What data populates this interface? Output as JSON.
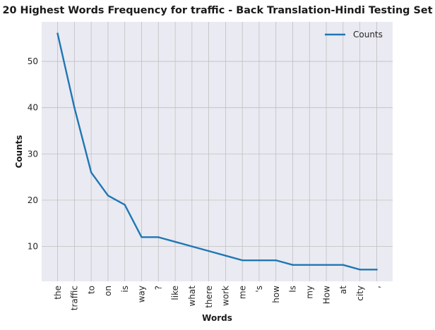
{
  "chart_data": {
    "type": "line",
    "title": "20 Highest Words Frequency for traffic - Back Translation-Hindi Testing Set",
    "xlabel": "Words",
    "ylabel": "Counts",
    "categories": [
      "the",
      "traffic",
      "to",
      "on",
      "is",
      "way",
      "?",
      "like",
      "what",
      "there",
      "work",
      "me",
      "'s",
      "how",
      "Is",
      "my",
      "How",
      "at",
      "city",
      ","
    ],
    "series": [
      {
        "name": "Counts",
        "values": [
          56,
          40,
          26,
          21,
          19,
          12,
          12,
          11,
          10,
          9,
          8,
          7,
          7,
          7,
          6,
          6,
          6,
          6,
          5,
          5
        ]
      }
    ],
    "yticks": [
      10,
      20,
      30,
      40,
      50
    ],
    "ylim": [
      2.45,
      58.55
    ],
    "grid": true,
    "legend": "top-right",
    "colors": {
      "line": "#1f77b4",
      "background": "#eaeaf2",
      "grid": "#c0c0c0"
    }
  }
}
